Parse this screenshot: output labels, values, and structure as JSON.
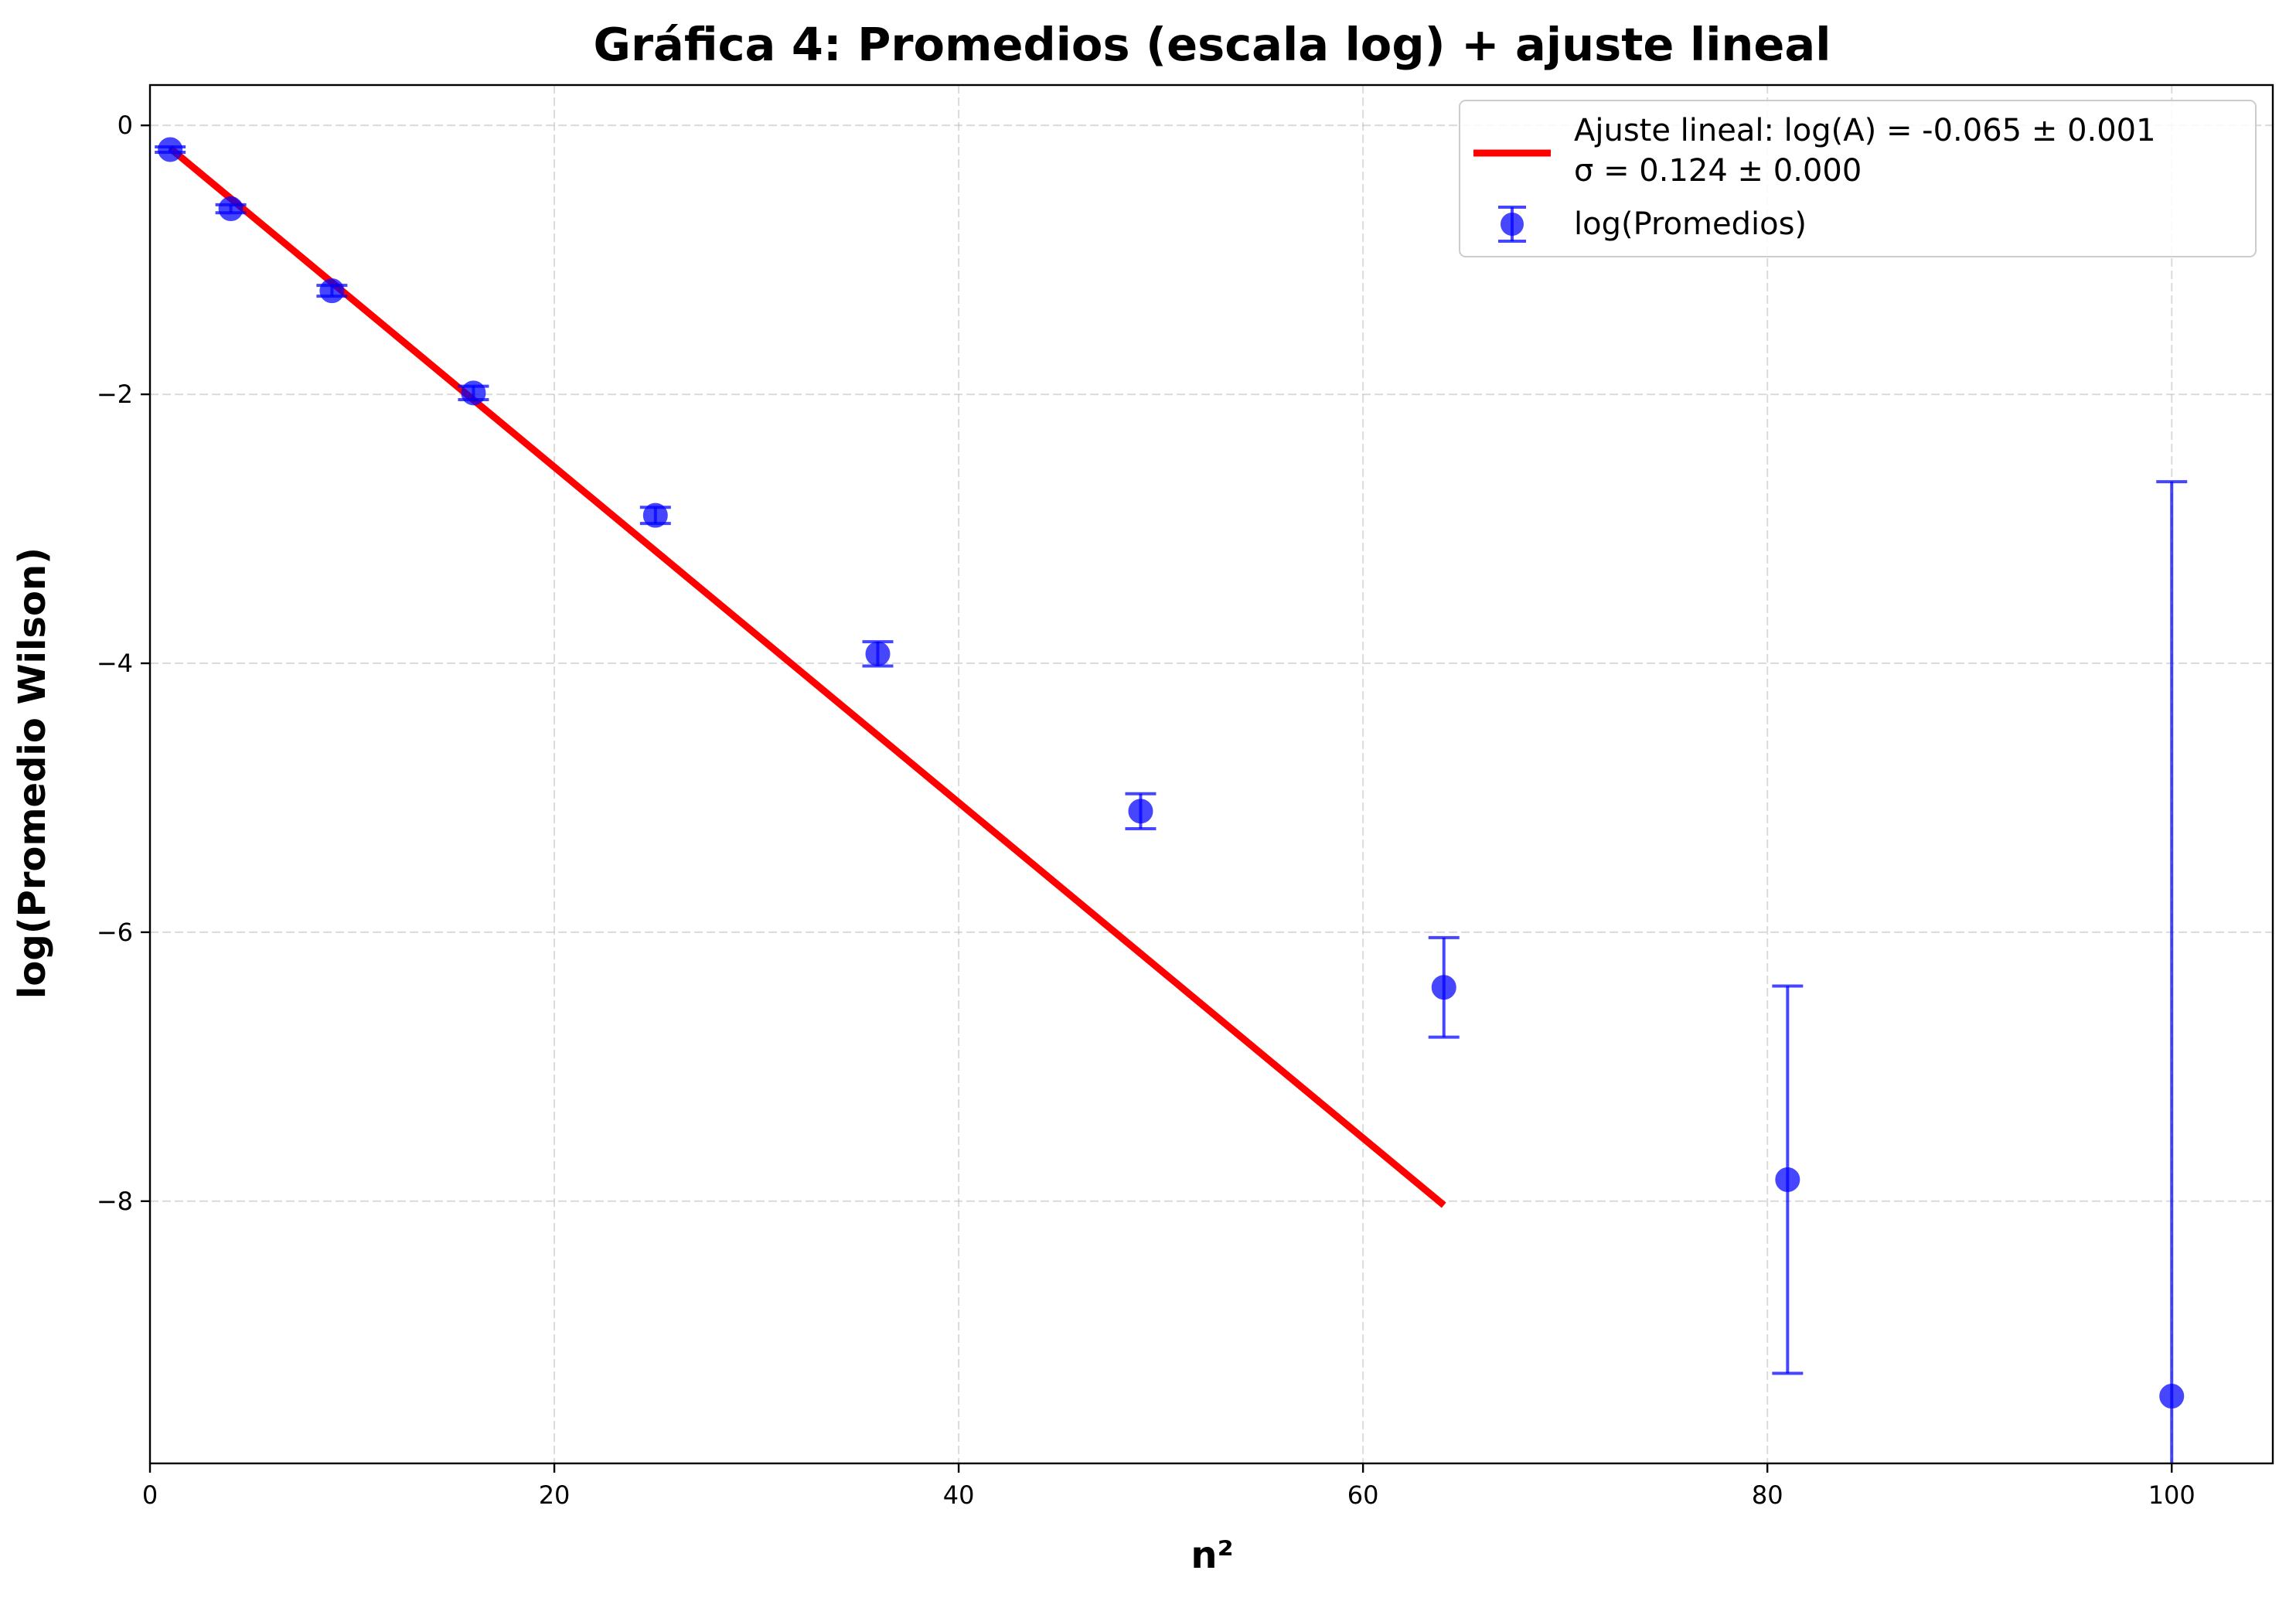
{
  "chart_data": {
    "type": "scatter",
    "title": "Gráfica 4: Promedios (escala log) + ajuste lineal",
    "xlabel": "n²",
    "ylabel": "log(Promedio Wilson)",
    "xlim": [
      0,
      105
    ],
    "ylim": [
      -9.95,
      0.3
    ],
    "x_ticks": [
      0,
      20,
      40,
      60,
      80,
      100
    ],
    "x_tick_labels": [
      "0",
      "20",
      "40",
      "60",
      "80",
      "100"
    ],
    "y_ticks": [
      0,
      -2,
      -4,
      -6,
      -8
    ],
    "y_tick_labels": [
      "0",
      "−2",
      "−4",
      "−6",
      "−8"
    ],
    "grid": true,
    "legend_position": "top-right",
    "series": [
      {
        "name": "log(Promedios)",
        "kind": "errorbar",
        "color": "#0000ff",
        "x": [
          1,
          4,
          9,
          16,
          25,
          36,
          49,
          64,
          81,
          100
        ],
        "y": [
          -0.18,
          -0.62,
          -1.23,
          -1.99,
          -2.9,
          -3.93,
          -5.1,
          -6.41,
          -7.84,
          -9.45
        ],
        "yerr": [
          0.02,
          0.03,
          0.04,
          0.05,
          0.06,
          0.09,
          0.13,
          0.37,
          1.44,
          6.8
        ]
      },
      {
        "name": "Ajuste lineal: log(A) = -0.065 ± 0.001\nσ = 0.124 ± 0.000",
        "kind": "line",
        "color": "#ff0000",
        "x": [
          1,
          64
        ],
        "y": [
          -0.17,
          -8.03
        ]
      }
    ],
    "legend_entries": [
      [
        "Ajuste lineal: log(A) = -0.065 ± 0.001",
        "σ = 0.124 ± 0.000"
      ],
      [
        "log(Promedios)"
      ]
    ]
  }
}
